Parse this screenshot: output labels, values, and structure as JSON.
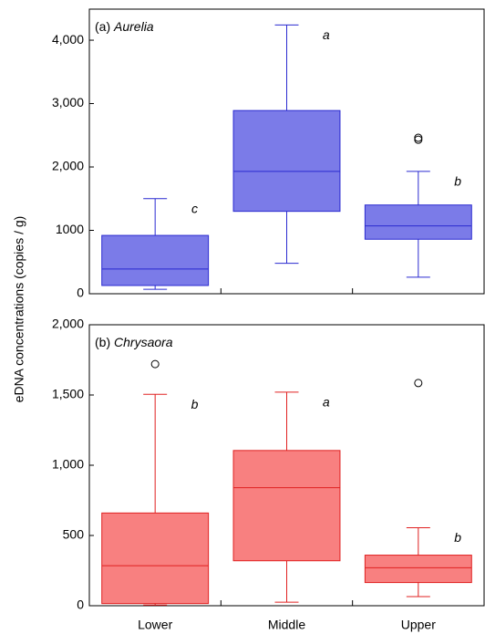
{
  "y_label": "eDNA concentrations (copies / g)",
  "chart_data": [
    {
      "type": "box",
      "panel_label": "(a)",
      "title": "Aurelia",
      "color": "#7b7be8",
      "stroke": "#2a2ad0",
      "ylim": [
        0,
        4490
      ],
      "yticks": [
        0,
        1000,
        {
          "value": 2000,
          "label": "2,000"
        },
        {
          "value": 3000,
          "label": "3,000"
        },
        {
          "value": 4000,
          "label": "4,000"
        }
      ],
      "boxes": [
        {
          "min": 70,
          "q1": 130,
          "median": 390,
          "q3": 920,
          "max": 1500,
          "outliers": [],
          "letter": "c"
        },
        {
          "min": 480,
          "q1": 1300,
          "median": 1930,
          "q3": 2890,
          "max": 4240,
          "outliers": [],
          "letter": "a"
        },
        {
          "min": 260,
          "q1": 860,
          "median": 1070,
          "q3": 1400,
          "max": 1930,
          "outliers": [
            2430,
            2460
          ],
          "letter": "b"
        }
      ]
    },
    {
      "type": "box",
      "panel_label": "(b)",
      "title": "Chrysaora",
      "color": "#f88080",
      "stroke": "#e02020",
      "categories": [
        "Lower",
        "Middle",
        "Upper"
      ],
      "ylim": [
        0,
        2000
      ],
      "yticks": [
        0,
        500,
        {
          "value": 1000,
          "label": "1,000"
        },
        {
          "value": 1500,
          "label": "1,500"
        },
        {
          "value": 2000,
          "label": "2,000"
        }
      ],
      "boxes": [
        {
          "min": 5,
          "q1": 15,
          "median": 285,
          "q3": 660,
          "max": 1505,
          "outliers": [
            1720
          ],
          "letter": "b"
        },
        {
          "min": 25,
          "q1": 320,
          "median": 840,
          "q3": 1105,
          "max": 1520,
          "outliers": [],
          "letter": "a"
        },
        {
          "min": 65,
          "q1": 165,
          "median": 270,
          "q3": 360,
          "max": 555,
          "outliers": [
            1585
          ],
          "letter": "b"
        }
      ]
    }
  ]
}
